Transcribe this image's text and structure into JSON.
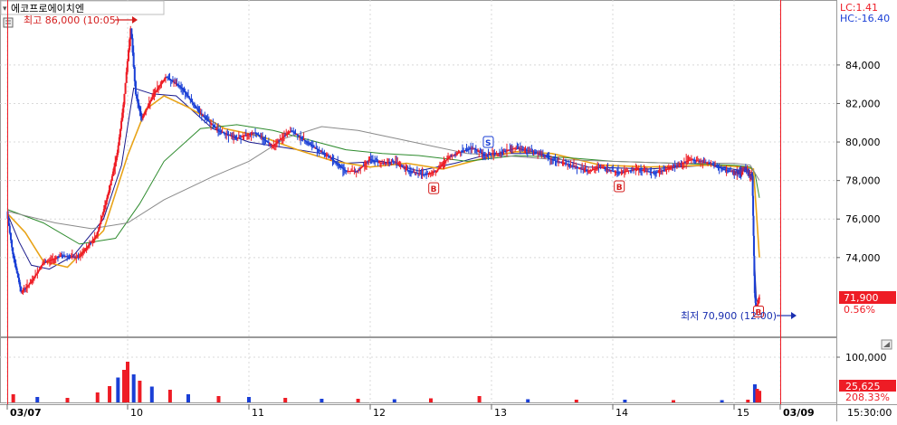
{
  "stock_name": "에코프로에이치엔",
  "indicators": {
    "lc": "LC:1.41",
    "hc": "HC:-16.40"
  },
  "annotations": {
    "high": "최고 86,000 (10:05)",
    "low": "최저 70,900 (12:00)"
  },
  "current": {
    "price_label": "71,900",
    "change_label": "0.56%"
  },
  "volume_panel": {
    "current_label": "25,625",
    "ratio_label": "208.33%"
  },
  "time_label": "15:30:00",
  "colors": {
    "up": "#ee1c25",
    "down": "#1a3fd6",
    "ma5": "#1a1a8c",
    "ma10": "#e8a317",
    "ma20": "#2e8b2e",
    "ma60": "#8a8a8a",
    "label_bg": "#ee1c25",
    "grid": "#d8d8d8"
  },
  "chart_data": {
    "type": "candlestick",
    "session_labels": [
      "03/07",
      "10",
      "11",
      "12",
      "13",
      "14",
      "15",
      "03/09"
    ],
    "price_axis": {
      "ylim": [
        70000,
        87000
      ],
      "ticks": [
        74000,
        76000,
        78000,
        80000,
        82000,
        84000
      ],
      "tick_labels": [
        "74,000",
        "76,000",
        "78,000",
        "80,000",
        "82,000",
        "84,000"
      ]
    },
    "volume_axis": {
      "ticks": [
        100000
      ],
      "tick_labels": [
        "100,000"
      ]
    },
    "price_path": [
      [
        0,
        76400
      ],
      [
        0.05,
        74200
      ],
      [
        0.12,
        72200
      ],
      [
        0.2,
        72700
      ],
      [
        0.3,
        73700
      ],
      [
        0.45,
        74100
      ],
      [
        0.6,
        74000
      ],
      [
        0.75,
        75200
      ],
      [
        0.85,
        77500
      ],
      [
        0.92,
        79500
      ],
      [
        0.97,
        82000
      ],
      [
        1.0,
        84000
      ],
      [
        1.03,
        86000
      ],
      [
        1.07,
        82500
      ],
      [
        1.12,
        81200
      ],
      [
        1.22,
        82500
      ],
      [
        1.32,
        83400
      ],
      [
        1.45,
        82800
      ],
      [
        1.6,
        81500
      ],
      [
        1.75,
        80600
      ],
      [
        1.9,
        80200
      ],
      [
        2.05,
        80500
      ],
      [
        2.2,
        79800
      ],
      [
        2.35,
        80600
      ],
      [
        2.5,
        79900
      ],
      [
        2.65,
        79300
      ],
      [
        2.8,
        78500
      ],
      [
        2.9,
        78500
      ],
      [
        3.0,
        79100
      ],
      [
        3.1,
        78900
      ],
      [
        3.2,
        79000
      ],
      [
        3.32,
        78500
      ],
      [
        3.45,
        78300
      ],
      [
        3.55,
        78500
      ],
      [
        3.65,
        79200
      ],
      [
        3.75,
        79500
      ],
      [
        3.85,
        79700
      ],
      [
        3.95,
        79300
      ],
      [
        4.05,
        79400
      ],
      [
        4.2,
        79700
      ],
      [
        4.35,
        79500
      ],
      [
        4.5,
        79100
      ],
      [
        4.65,
        78800
      ],
      [
        4.8,
        78500
      ],
      [
        4.9,
        78700
      ],
      [
        5.05,
        78400
      ],
      [
        5.2,
        78600
      ],
      [
        5.35,
        78400
      ],
      [
        5.5,
        78700
      ],
      [
        5.65,
        79100
      ],
      [
        5.8,
        78900
      ],
      [
        5.95,
        78500
      ],
      [
        6.1,
        78400
      ],
      [
        6.25,
        78600
      ],
      [
        6.35,
        78300
      ],
      [
        6.4,
        78300
      ],
      [
        6.45,
        72200
      ],
      [
        6.48,
        71300
      ],
      [
        6.52,
        71600
      ],
      [
        6.55,
        71900
      ]
    ],
    "ma_lines": {
      "ma5": [
        [
          0,
          76300
        ],
        [
          0.1,
          74800
        ],
        [
          0.2,
          73600
        ],
        [
          0.35,
          73400
        ],
        [
          0.55,
          74100
        ],
        [
          0.8,
          76000
        ],
        [
          0.95,
          78800
        ],
        [
          1.05,
          82800
        ],
        [
          1.2,
          82500
        ],
        [
          1.4,
          82400
        ],
        [
          1.7,
          80700
        ],
        [
          2.0,
          80000
        ],
        [
          2.3,
          79700
        ],
        [
          2.6,
          79400
        ],
        [
          2.8,
          78900
        ],
        [
          3.1,
          79000
        ],
        [
          3.4,
          78500
        ],
        [
          3.7,
          78900
        ],
        [
          4.0,
          79400
        ],
        [
          4.4,
          79400
        ],
        [
          4.8,
          78700
        ],
        [
          5.3,
          78600
        ],
        [
          5.8,
          78800
        ],
        [
          6.2,
          78500
        ],
        [
          6.4,
          78400
        ],
        [
          6.44,
          74000
        ],
        [
          6.48,
          71900
        ],
        [
          6.52,
          71600
        ],
        [
          6.55,
          71800
        ]
      ],
      "ma10": [
        [
          0,
          76300
        ],
        [
          0.15,
          75300
        ],
        [
          0.3,
          73800
        ],
        [
          0.5,
          73500
        ],
        [
          0.8,
          75400
        ],
        [
          1.0,
          79300
        ],
        [
          1.15,
          81700
        ],
        [
          1.3,
          82400
        ],
        [
          1.5,
          81800
        ],
        [
          1.8,
          80700
        ],
        [
          2.1,
          80300
        ],
        [
          2.4,
          79600
        ],
        [
          2.7,
          79000
        ],
        [
          3.0,
          78700
        ],
        [
          3.3,
          78900
        ],
        [
          3.6,
          78600
        ],
        [
          3.9,
          79100
        ],
        [
          4.2,
          79500
        ],
        [
          4.5,
          79400
        ],
        [
          4.9,
          78800
        ],
        [
          5.3,
          78700
        ],
        [
          5.8,
          78800
        ],
        [
          6.2,
          78700
        ],
        [
          6.42,
          78600
        ],
        [
          6.48,
          76500
        ],
        [
          6.55,
          74000
        ]
      ],
      "ma20": [
        [
          0,
          76500
        ],
        [
          0.3,
          75800
        ],
        [
          0.6,
          74700
        ],
        [
          0.9,
          75000
        ],
        [
          1.1,
          76800
        ],
        [
          1.3,
          79000
        ],
        [
          1.6,
          80700
        ],
        [
          1.9,
          80900
        ],
        [
          2.2,
          80600
        ],
        [
          2.5,
          80100
        ],
        [
          2.8,
          79600
        ],
        [
          3.1,
          79400
        ],
        [
          3.4,
          79300
        ],
        [
          3.8,
          79000
        ],
        [
          4.2,
          79300
        ],
        [
          4.6,
          79200
        ],
        [
          5.0,
          79000
        ],
        [
          5.5,
          78900
        ],
        [
          6.0,
          78800
        ],
        [
          6.35,
          78700
        ],
        [
          6.45,
          78400
        ],
        [
          6.55,
          77100
        ]
      ],
      "ma60": [
        [
          0,
          76400
        ],
        [
          0.4,
          75800
        ],
        [
          0.7,
          75500
        ],
        [
          1.0,
          75800
        ],
        [
          1.3,
          77000
        ],
        [
          1.7,
          78200
        ],
        [
          2.0,
          79000
        ],
        [
          2.3,
          80200
        ],
        [
          2.6,
          80800
        ],
        [
          2.9,
          80600
        ],
        [
          3.2,
          80200
        ],
        [
          3.5,
          79800
        ],
        [
          3.8,
          79400
        ],
        [
          4.1,
          79300
        ],
        [
          4.5,
          79100
        ],
        [
          5.0,
          79000
        ],
        [
          5.5,
          78900
        ],
        [
          6.0,
          78900
        ],
        [
          6.35,
          78800
        ],
        [
          6.55,
          78000
        ]
      ]
    },
    "signal_markers": [
      {
        "label": "B",
        "x": 3.52,
        "y": 77600
      },
      {
        "label": "S",
        "x": 3.97,
        "y": 80000
      },
      {
        "label": "B",
        "x": 5.05,
        "y": 77700
      },
      {
        "label": "B",
        "x": 6.52,
        "y": 71200
      }
    ],
    "volume_bars": [
      {
        "x": 0.05,
        "v": 18000,
        "up": true
      },
      {
        "x": 0.25,
        "v": 12000,
        "up": false
      },
      {
        "x": 0.5,
        "v": 10000,
        "up": true
      },
      {
        "x": 0.75,
        "v": 22000,
        "up": true
      },
      {
        "x": 0.85,
        "v": 36000,
        "up": true
      },
      {
        "x": 0.92,
        "v": 55000,
        "up": false
      },
      {
        "x": 0.97,
        "v": 72000,
        "up": true
      },
      {
        "x": 1.0,
        "v": 90000,
        "up": true
      },
      {
        "x": 1.05,
        "v": 62000,
        "up": false
      },
      {
        "x": 1.1,
        "v": 48000,
        "up": true
      },
      {
        "x": 1.2,
        "v": 35000,
        "up": false
      },
      {
        "x": 1.35,
        "v": 28000,
        "up": true
      },
      {
        "x": 1.5,
        "v": 18000,
        "up": false
      },
      {
        "x": 1.75,
        "v": 14000,
        "up": true
      },
      {
        "x": 2.0,
        "v": 12000,
        "up": false
      },
      {
        "x": 2.3,
        "v": 10000,
        "up": true
      },
      {
        "x": 2.6,
        "v": 8000,
        "up": false
      },
      {
        "x": 2.9,
        "v": 8000,
        "up": true
      },
      {
        "x": 3.2,
        "v": 7000,
        "up": false
      },
      {
        "x": 3.5,
        "v": 9000,
        "up": true
      },
      {
        "x": 3.9,
        "v": 14000,
        "up": true
      },
      {
        "x": 4.3,
        "v": 7000,
        "up": false
      },
      {
        "x": 4.7,
        "v": 6000,
        "up": true
      },
      {
        "x": 5.1,
        "v": 6000,
        "up": false
      },
      {
        "x": 5.5,
        "v": 5000,
        "up": true
      },
      {
        "x": 5.9,
        "v": 5000,
        "up": false
      },
      {
        "x": 6.3,
        "v": 6000,
        "up": true
      },
      {
        "x": 6.45,
        "v": 40000,
        "up": false
      },
      {
        "x": 6.5,
        "v": 30000,
        "up": true
      },
      {
        "x": 6.55,
        "v": 25625,
        "up": true
      }
    ]
  }
}
